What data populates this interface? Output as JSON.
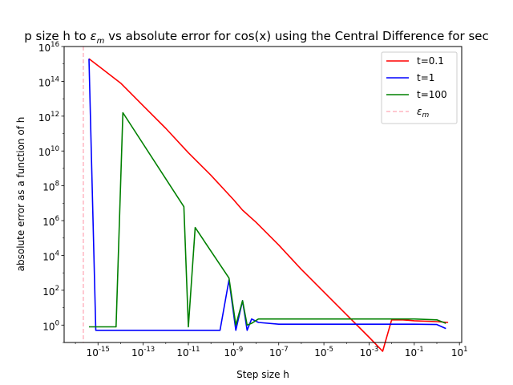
{
  "chart_data": {
    "type": "line",
    "title_prefix": "p size h to ",
    "title_symbol": "ε",
    "title_symbol_sub": "m",
    "title_suffix": " vs absolute error for cos(x) using the Central Difference for sec",
    "xlabel": "Step size h",
    "ylabel": "absolute error as a function of h",
    "xscale": "log",
    "yscale": "log",
    "xlim_exp": [
      -16.5,
      1.1
    ],
    "ylim_exp": [
      -1.0,
      16.0
    ],
    "x_tick_exponents": [
      "-15",
      "-13",
      "-11",
      "-9",
      "-7",
      "-5",
      "-3",
      "-1",
      "1"
    ],
    "y_tick_exponents": [
      "0",
      "2",
      "4",
      "6",
      "8",
      "10",
      "12",
      "14",
      "16"
    ],
    "epsilon_m_exp": -15.65,
    "series": [
      {
        "name": "t=0.1",
        "color": "#ff0000",
        "points": [
          [
            -15.4,
            15.3
          ],
          [
            -14.0,
            13.9
          ],
          [
            -13.0,
            12.6
          ],
          [
            -12.0,
            11.3
          ],
          [
            -11.0,
            9.9
          ],
          [
            -10.0,
            8.6
          ],
          [
            -9.0,
            7.2
          ],
          [
            -8.6,
            6.6
          ],
          [
            -8.0,
            5.9
          ],
          [
            -7.0,
            4.6
          ],
          [
            -6.0,
            3.2
          ],
          [
            -5.0,
            1.9
          ],
          [
            -4.0,
            0.6
          ],
          [
            -3.0,
            -0.7
          ],
          [
            -2.4,
            -1.5
          ],
          [
            -2.0,
            0.3
          ],
          [
            -1.5,
            0.3
          ],
          [
            -1.0,
            0.25
          ],
          [
            0.0,
            0.2
          ],
          [
            0.5,
            0.15
          ]
        ]
      },
      {
        "name": "t=1",
        "color": "#0000ff",
        "points": [
          [
            -15.4,
            15.3
          ],
          [
            -15.1,
            -0.3
          ],
          [
            -9.6,
            -0.3
          ],
          [
            -9.2,
            2.6
          ],
          [
            -8.9,
            -0.3
          ],
          [
            -8.6,
            1.4
          ],
          [
            -8.4,
            -0.3
          ],
          [
            -8.2,
            0.35
          ],
          [
            -7.9,
            0.15
          ],
          [
            -7.0,
            0.05
          ],
          [
            -5.0,
            0.05
          ],
          [
            -3.0,
            0.05
          ],
          [
            -1.0,
            0.05
          ],
          [
            0.0,
            0.03
          ],
          [
            0.4,
            -0.2
          ]
        ]
      },
      {
        "name": "t=100",
        "color": "#008000",
        "points": [
          [
            -15.4,
            -0.1
          ],
          [
            -14.2,
            -0.1
          ],
          [
            -13.9,
            12.2
          ],
          [
            -11.2,
            6.8
          ],
          [
            -11.0,
            -0.1
          ],
          [
            -10.7,
            5.6
          ],
          [
            -9.2,
            2.7
          ],
          [
            -8.9,
            0.0
          ],
          [
            -8.6,
            1.4
          ],
          [
            -8.4,
            0.0
          ],
          [
            -8.2,
            0.1
          ],
          [
            -7.9,
            0.35
          ],
          [
            -7.0,
            0.35
          ],
          [
            -5.0,
            0.35
          ],
          [
            -3.0,
            0.35
          ],
          [
            -1.0,
            0.35
          ],
          [
            0.0,
            0.3
          ],
          [
            0.4,
            0.1
          ]
        ]
      },
      {
        "name": "ε_m",
        "color": "#ffb6c1",
        "points": []
      }
    ],
    "legend_position": "upper right"
  }
}
